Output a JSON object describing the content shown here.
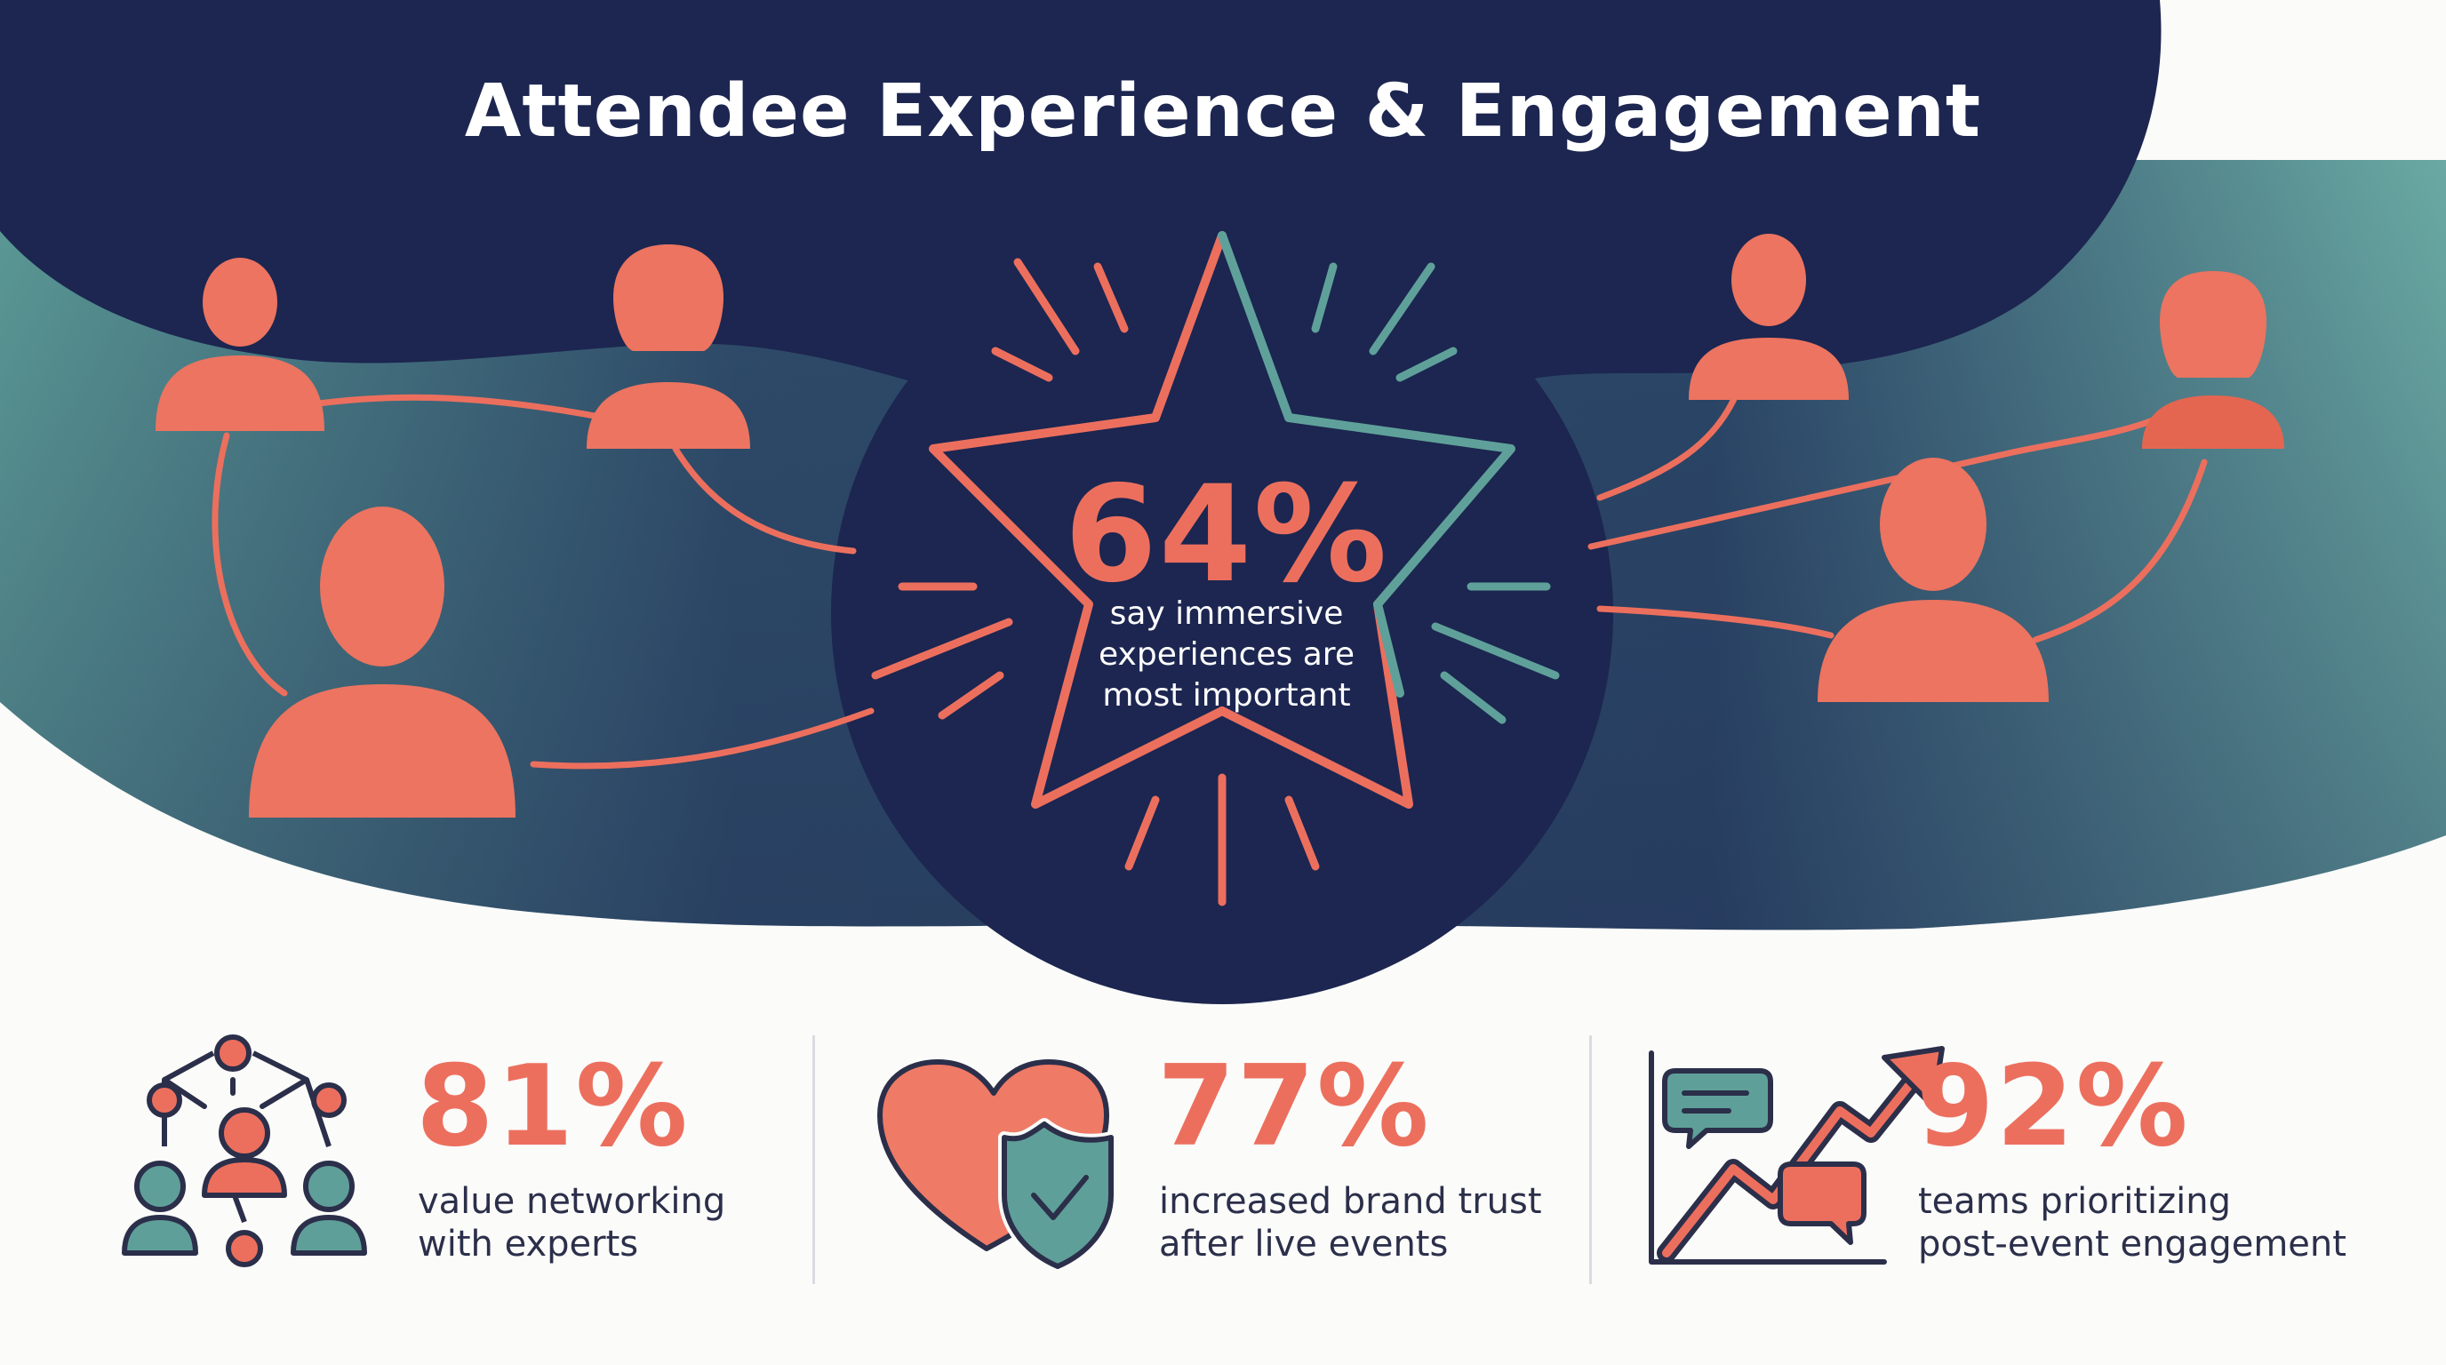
{
  "title": "Attendee Experience & Engagement",
  "hero": {
    "value": "64%",
    "label_lines": [
      "say immersive",
      "experiences are",
      "most important"
    ]
  },
  "stats": [
    {
      "value": "81%",
      "label_lines": [
        "value networking",
        "with experts"
      ],
      "icon": "networking-people-icon"
    },
    {
      "value": "77%",
      "label_lines": [
        "increased brand trust",
        "after live events"
      ],
      "icon": "heart-shield-icon"
    },
    {
      "value": "92%",
      "label_lines": [
        "teams prioritizing",
        "post-event engagement"
      ],
      "icon": "growth-chart-chat-icon"
    }
  ],
  "colors": {
    "navy": "#1c2650",
    "teal": "#5f9f99",
    "coral": "#ec6f5e",
    "background": "#fbfbf9",
    "text": "#2b2f4a"
  }
}
